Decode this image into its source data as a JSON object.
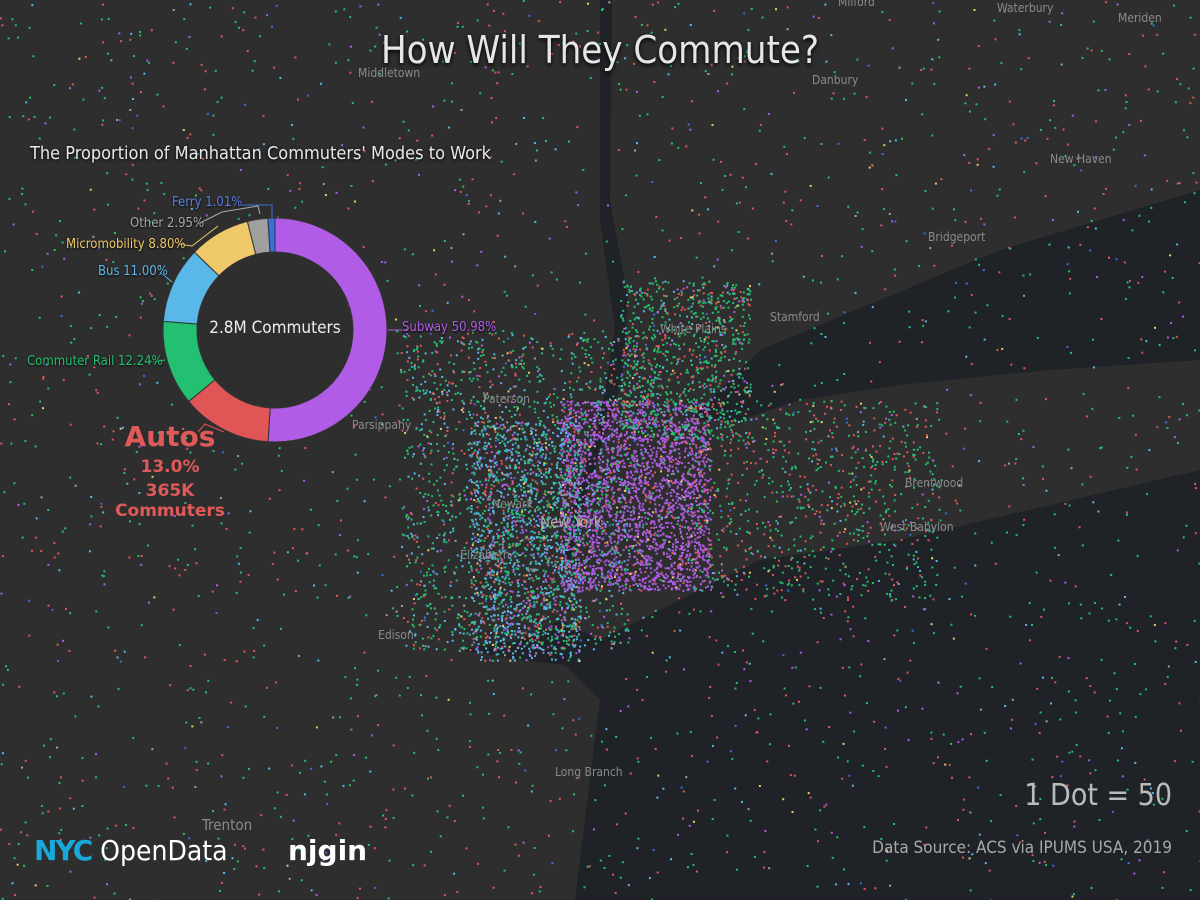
{
  "title": "How Will They Commute?",
  "subtitle": "The Proportion of Manhattan Commuters' Modes to Work",
  "donut": {
    "center_label": "2.8M Commuters",
    "segments": [
      {
        "name": "Subway",
        "pct": 50.98,
        "label": "Subway 50.98%",
        "color": "#b05ce6"
      },
      {
        "name": "Autos",
        "pct": 13.0,
        "label": "",
        "color": "#e05555"
      },
      {
        "name": "Commuter Rail",
        "pct": 12.24,
        "label": "Commuter Rail 12.24%",
        "color": "#22c070"
      },
      {
        "name": "Bus",
        "pct": 11.0,
        "label": "Bus 11.00%",
        "color": "#5ab8e8"
      },
      {
        "name": "Micromobility",
        "pct": 8.8,
        "label": "Micromobility 8.80%",
        "color": "#f0c96a"
      },
      {
        "name": "Other",
        "pct": 2.95,
        "label": "Other 2.95%",
        "color": "#a0a0a0"
      },
      {
        "name": "Ferry",
        "pct": 1.01,
        "label": "Ferry 1.01%",
        "color": "#3a6fe0"
      }
    ]
  },
  "autos_callout": {
    "title": "Autos",
    "pct": "13.0%",
    "count": "365K Commuters"
  },
  "scale_note": "1 Dot = 50",
  "source": "Data Source: ACS via IPUMS USA, 2019",
  "logos": {
    "nyc_a": "NYC",
    "nyc_b": "OpenData",
    "njgin": "njgin"
  },
  "map_labels": [
    "Middletown",
    "Danbury",
    "Waterbury",
    "Meriden",
    "Milford",
    "New Haven",
    "Bridgeport",
    "Stamford",
    "White Plains",
    "Paterson",
    "Parsippany",
    "Newark",
    "Elizabeth",
    "Edison",
    "Long Branch",
    "Trenton",
    "Brentwood",
    "West Babylon",
    "New York"
  ],
  "colors": {
    "land": "#2e2e2e",
    "water": "#1f2226"
  }
}
